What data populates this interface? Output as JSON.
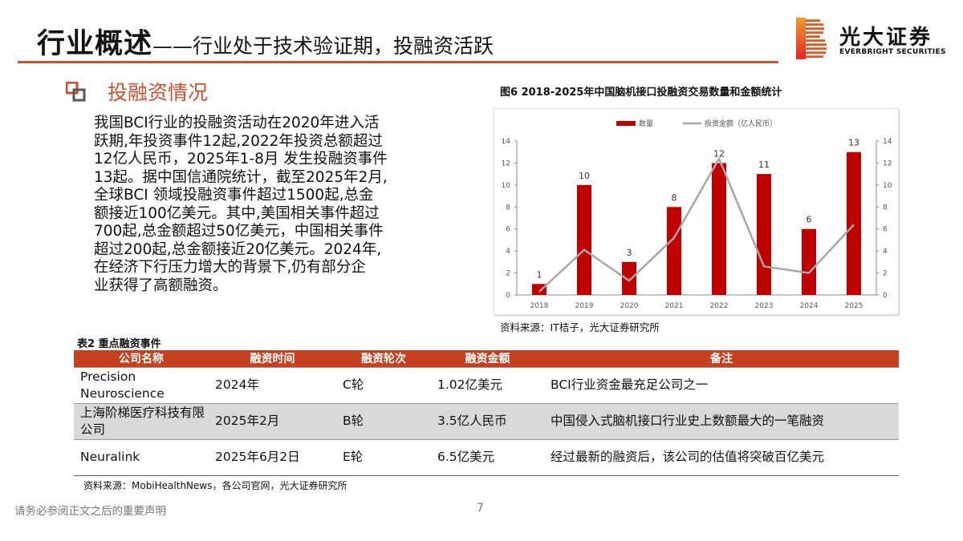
{
  "header": {
    "title": "行业概述",
    "subtitle": "——行业处于技术验证期，投融资活跃"
  },
  "logo": {
    "name_cn": "光大证券",
    "name_en": "EVERBRIGHT SECURITIES"
  },
  "section": {
    "title": "投融资情况"
  },
  "paragraph": {
    "lines": [
      "我国BCI行业的投融资活动在2020年进入活",
      "跃期,年投资事件12起,2022年投资总额超过",
      "12亿人民币，2025年1-8月 发生投融资事件",
      "13起。据中国信通院统计，截至2025年2月,",
      "全球BCI 领域投融资事件超过1500起,总金",
      "额接近100亿美元。其中,美国相关事件超过",
      "700起,总金额超过50亿美元，中国相关事件",
      "超过200起,总金额接近20亿美元。2024年,",
      "在经济下行压力增大的背景下,仍有部分企",
      "业获得了高额融资。"
    ]
  },
  "chart_data": {
    "type": "bar",
    "title": "图6 2018-2025年中国脑机接口投融资交易数量和金额统计",
    "categories": [
      "2018",
      "2019",
      "2020",
      "2021",
      "2022",
      "2023",
      "2024",
      "2025"
    ],
    "series": [
      {
        "name": "数量",
        "type": "bar",
        "axis": "left",
        "color": "#c00000",
        "values": [
          1,
          10,
          3,
          8,
          12,
          11,
          6,
          13
        ]
      },
      {
        "name": "投资金额（亿人民币）",
        "type": "line",
        "axis": "right",
        "color": "#a6a6a6",
        "values": [
          0.3,
          4.1,
          1.3,
          5.2,
          12.4,
          2.6,
          2.0,
          6.4
        ]
      }
    ],
    "ylim": [
      0,
      14
    ],
    "y2lim": [
      0,
      14
    ],
    "yticks": [
      "0",
      "2",
      "4",
      "6",
      "8",
      "10",
      "12",
      "14"
    ],
    "legend": "top-center",
    "grid": false,
    "source": "资料来源：IT桔子，光大证券研究所"
  },
  "table": {
    "title": "表2 重点融资事件",
    "headers": [
      "公司名称",
      "融资时间",
      "融资轮次",
      "融资金额",
      "备注"
    ],
    "rows": [
      [
        "Precision Neuroscience",
        "2024年",
        "C轮",
        "1.02亿美元",
        "BCI行业资金最充足公司之一"
      ],
      [
        "上海阶梯医疗科技有限公司",
        "2025年2月",
        "B轮",
        "3.5亿人民币",
        "中国侵入式脑机接口行业史上数额最大的一笔融资"
      ],
      [
        "Neuralink",
        "2025年6月2日",
        "E轮",
        "6.5亿美元",
        "经过最新的融资后，该公司的估值将突破百亿美元"
      ]
    ],
    "source": "资料来源：MobiHealthNews，各公司官网，光大证券研究所"
  },
  "footer": {
    "disclaimer": "请务必参阅正文之后的重要声明",
    "page": "7"
  }
}
